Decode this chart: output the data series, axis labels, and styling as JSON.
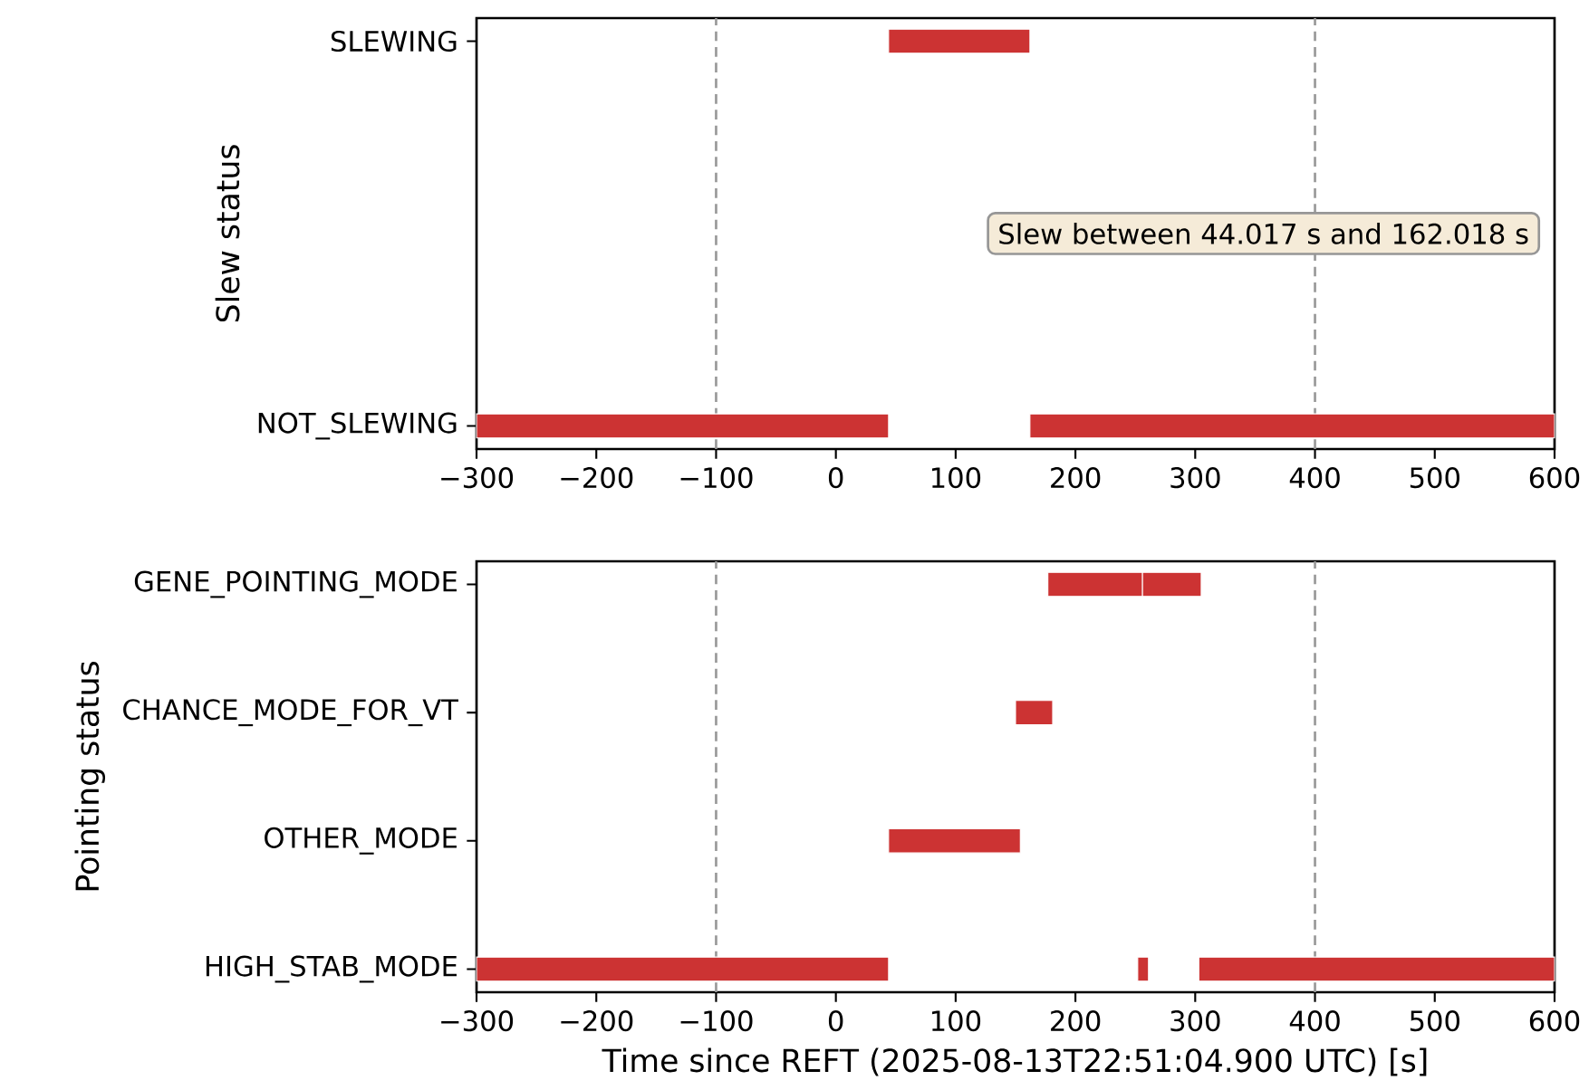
{
  "chart_data": [
    {
      "type": "bar",
      "orientation": "horizontal",
      "ylabel": "Slew status",
      "categories": [
        "SLEWING",
        "NOT_SLEWING"
      ],
      "series": [
        {
          "color": "#cc3333",
          "base": [
            44,
            -300
          ],
          "values": [
            118,
            344
          ]
        },
        {
          "color": "#cc3333",
          "base": [
            null,
            162
          ],
          "values": [
            null,
            438
          ]
        }
      ],
      "xlim": [
        -300,
        600
      ],
      "xticks": [
        {
          "value": -300,
          "label": "−300"
        },
        {
          "value": -200,
          "label": "−200"
        },
        {
          "value": -100,
          "label": "−100"
        },
        0,
        100,
        200,
        300,
        400,
        500,
        600
      ],
      "ref_lines": [
        {
          "axis": "x",
          "value": -100,
          "color": "#999999",
          "line_style": "dashed"
        },
        {
          "axis": "x",
          "value": 400,
          "color": "#999999",
          "line_style": "dashed"
        }
      ],
      "annotations": [
        "Slew between 44.017 s and 162.018 s"
      ]
    },
    {
      "type": "bar",
      "orientation": "horizontal",
      "ylabel": "Pointing status",
      "xlabel": "Time since REFT (2025-08-13T22:51:04.900 UTC) [s]",
      "categories": [
        "GENE_POINTING_MODE",
        "CHANCE_MODE_FOR_VT",
        "OTHER_MODE",
        "HIGH_STAB_MODE"
      ],
      "series": [
        {
          "color": "#cc3333",
          "base": [
            177,
            150,
            44,
            -300
          ],
          "values": [
            79,
            31,
            110,
            344
          ]
        },
        {
          "color": "#cc3333",
          "base": [
            256,
            null,
            null,
            252
          ],
          "values": [
            49,
            null,
            null,
            9
          ]
        },
        {
          "color": "#cc3333",
          "base": [
            null,
            null,
            null,
            303
          ],
          "values": [
            null,
            null,
            null,
            297
          ]
        }
      ],
      "xlim": [
        -300,
        600
      ],
      "xticks": [
        {
          "value": -300,
          "label": "−300"
        },
        {
          "value": -200,
          "label": "−200"
        },
        {
          "value": -100,
          "label": "−100"
        },
        0,
        100,
        200,
        300,
        400,
        500,
        600
      ],
      "ref_lines": [
        {
          "axis": "x",
          "value": -100,
          "color": "#999999",
          "line_style": "dashed"
        },
        {
          "axis": "x",
          "value": 400,
          "color": "#999999",
          "line_style": "dashed"
        }
      ]
    }
  ]
}
